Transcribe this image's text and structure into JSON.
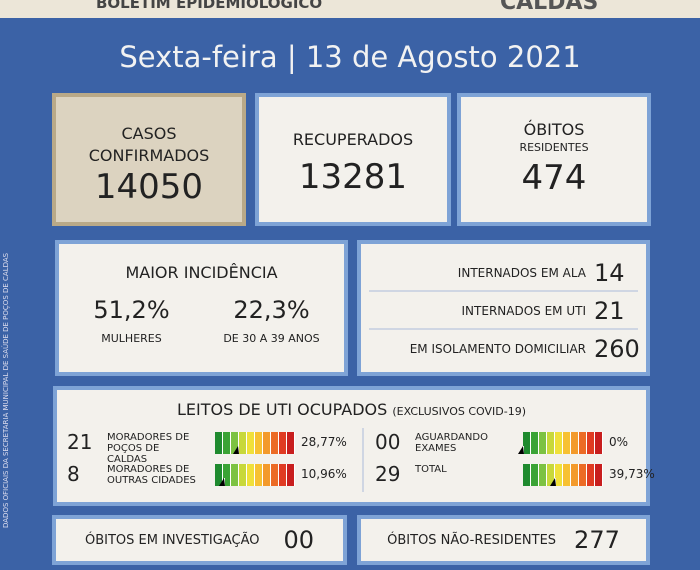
{
  "header": {
    "title": "BOLETIM EPIDEMIOLÓGICO",
    "brand": "CALDAS"
  },
  "date": "Sexta-feira | 13 de Agosto 2021",
  "side_note": "DADOS OFICIAIS DA SECRETARIA MUNICIPAL DE SAÚDE DE POÇOS DE CALDAS",
  "cards": [
    {
      "label": "CASOS CONFIRMADOS",
      "value": 14050
    },
    {
      "label": "RECUPERADOS",
      "value": 13281
    },
    {
      "label": "ÓBITOS",
      "sublabel": "RESIDENTES",
      "value": 474
    }
  ],
  "incidence": {
    "title": "MAIOR INCIDÊNCIA",
    "items": [
      {
        "value": "51,2%",
        "label": "MULHERES"
      },
      {
        "value": "22,3%",
        "label": "DE 30 A 39 ANOS"
      }
    ]
  },
  "hospital": [
    {
      "label": "INTERNADOS EM ALA",
      "value": 14
    },
    {
      "label": "INTERNADOS EM UTI",
      "value": 21
    },
    {
      "label": "EM ISOLAMENTO DOMICILIAR",
      "value": 260
    }
  ],
  "icu": {
    "title": "LEITOS DE UTI OCUPADOS",
    "note": "(EXCLUSIVOS COVID-19)",
    "rows": [
      {
        "count": 21,
        "label": "MORADORES DE POÇOS DE CALDAS",
        "percent": "28,77%"
      },
      {
        "count": 8,
        "label": "MORADORES DE OUTRAS CIDADES",
        "percent": "10,96%"
      },
      {
        "count": "00",
        "label": "AGUARDANDO EXAMES",
        "percent": "0%"
      },
      {
        "count": 29,
        "label": "TOTAL",
        "percent": "39,73%"
      }
    ]
  },
  "footer": [
    {
      "label": "ÓBITOS EM INVESTIGAÇÃO",
      "value": "00"
    },
    {
      "label": "ÓBITOS NÃO-RESIDENTES",
      "value": 277
    }
  ]
}
